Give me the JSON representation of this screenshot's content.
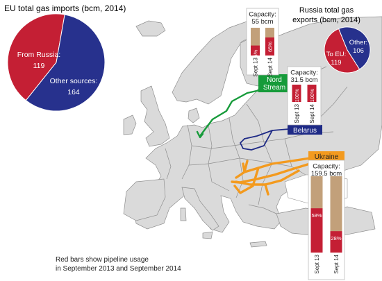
{
  "colors": {
    "sea": "#ffffff",
    "land": "#dadada",
    "border": "#8f8f8f",
    "russia_red": "#c41f34",
    "other_blue": "#27318d",
    "capacity_tan": "#c2a07a",
    "nord_green": "#169b3a",
    "belarus_navy": "#1e2a86",
    "ukraine_orange": "#f39a1e",
    "label_box_bg": "#ffffff",
    "dark_text": "#222222"
  },
  "footnote": {
    "line1": "Red bars show pipeline usage",
    "line2": "in September 2013 and September 2014"
  },
  "routes": {
    "nord_stream": {
      "line1": "Nord",
      "line2": "Stream"
    },
    "belarus": {
      "label": "Belarus"
    },
    "ukraine": {
      "label": "Ukraine"
    }
  },
  "chart_data": [
    {
      "id": "eu-imports",
      "type": "pie",
      "title": "EU total gas imports (bcm, 2014)",
      "labels": [
        "From Russia:",
        "Other sources:"
      ],
      "values": [
        119,
        164
      ],
      "colors": [
        "#c41f34",
        "#27318d"
      ]
    },
    {
      "id": "russia-exports",
      "type": "pie",
      "title_line1": "Russia total gas",
      "title_line2": "exports (bcm, 2014)",
      "labels": [
        "To EU:",
        "Other:"
      ],
      "values": [
        119,
        106
      ],
      "colors": [
        "#c41f34",
        "#27318d"
      ]
    },
    {
      "id": "nord-stream-usage",
      "type": "bar",
      "capacity_line1": "Capacity:",
      "capacity_line2": "55 bcm",
      "categories": [
        "Sept 13",
        "Sept 14"
      ],
      "values": [
        36,
        65
      ],
      "value_labels": [
        "36%",
        "65%"
      ],
      "ylim": [
        0,
        100
      ]
    },
    {
      "id": "belarus-usage",
      "type": "bar",
      "capacity_line1": "Capacity:",
      "capacity_line2": "31.5 bcm",
      "categories": [
        "Sept 13",
        "Sept 14"
      ],
      "values": [
        100,
        100
      ],
      "value_labels": [
        "100%",
        "100%"
      ],
      "ylim": [
        0,
        100
      ]
    },
    {
      "id": "ukraine-usage",
      "type": "bar",
      "capacity_line1": "Capacity:",
      "capacity_line2": "159.5 bcm",
      "categories": [
        "Sept 13",
        "Sept 14"
      ],
      "values": [
        58,
        28
      ],
      "value_labels": [
        "58%",
        "28%"
      ],
      "ylim": [
        0,
        100
      ]
    }
  ]
}
